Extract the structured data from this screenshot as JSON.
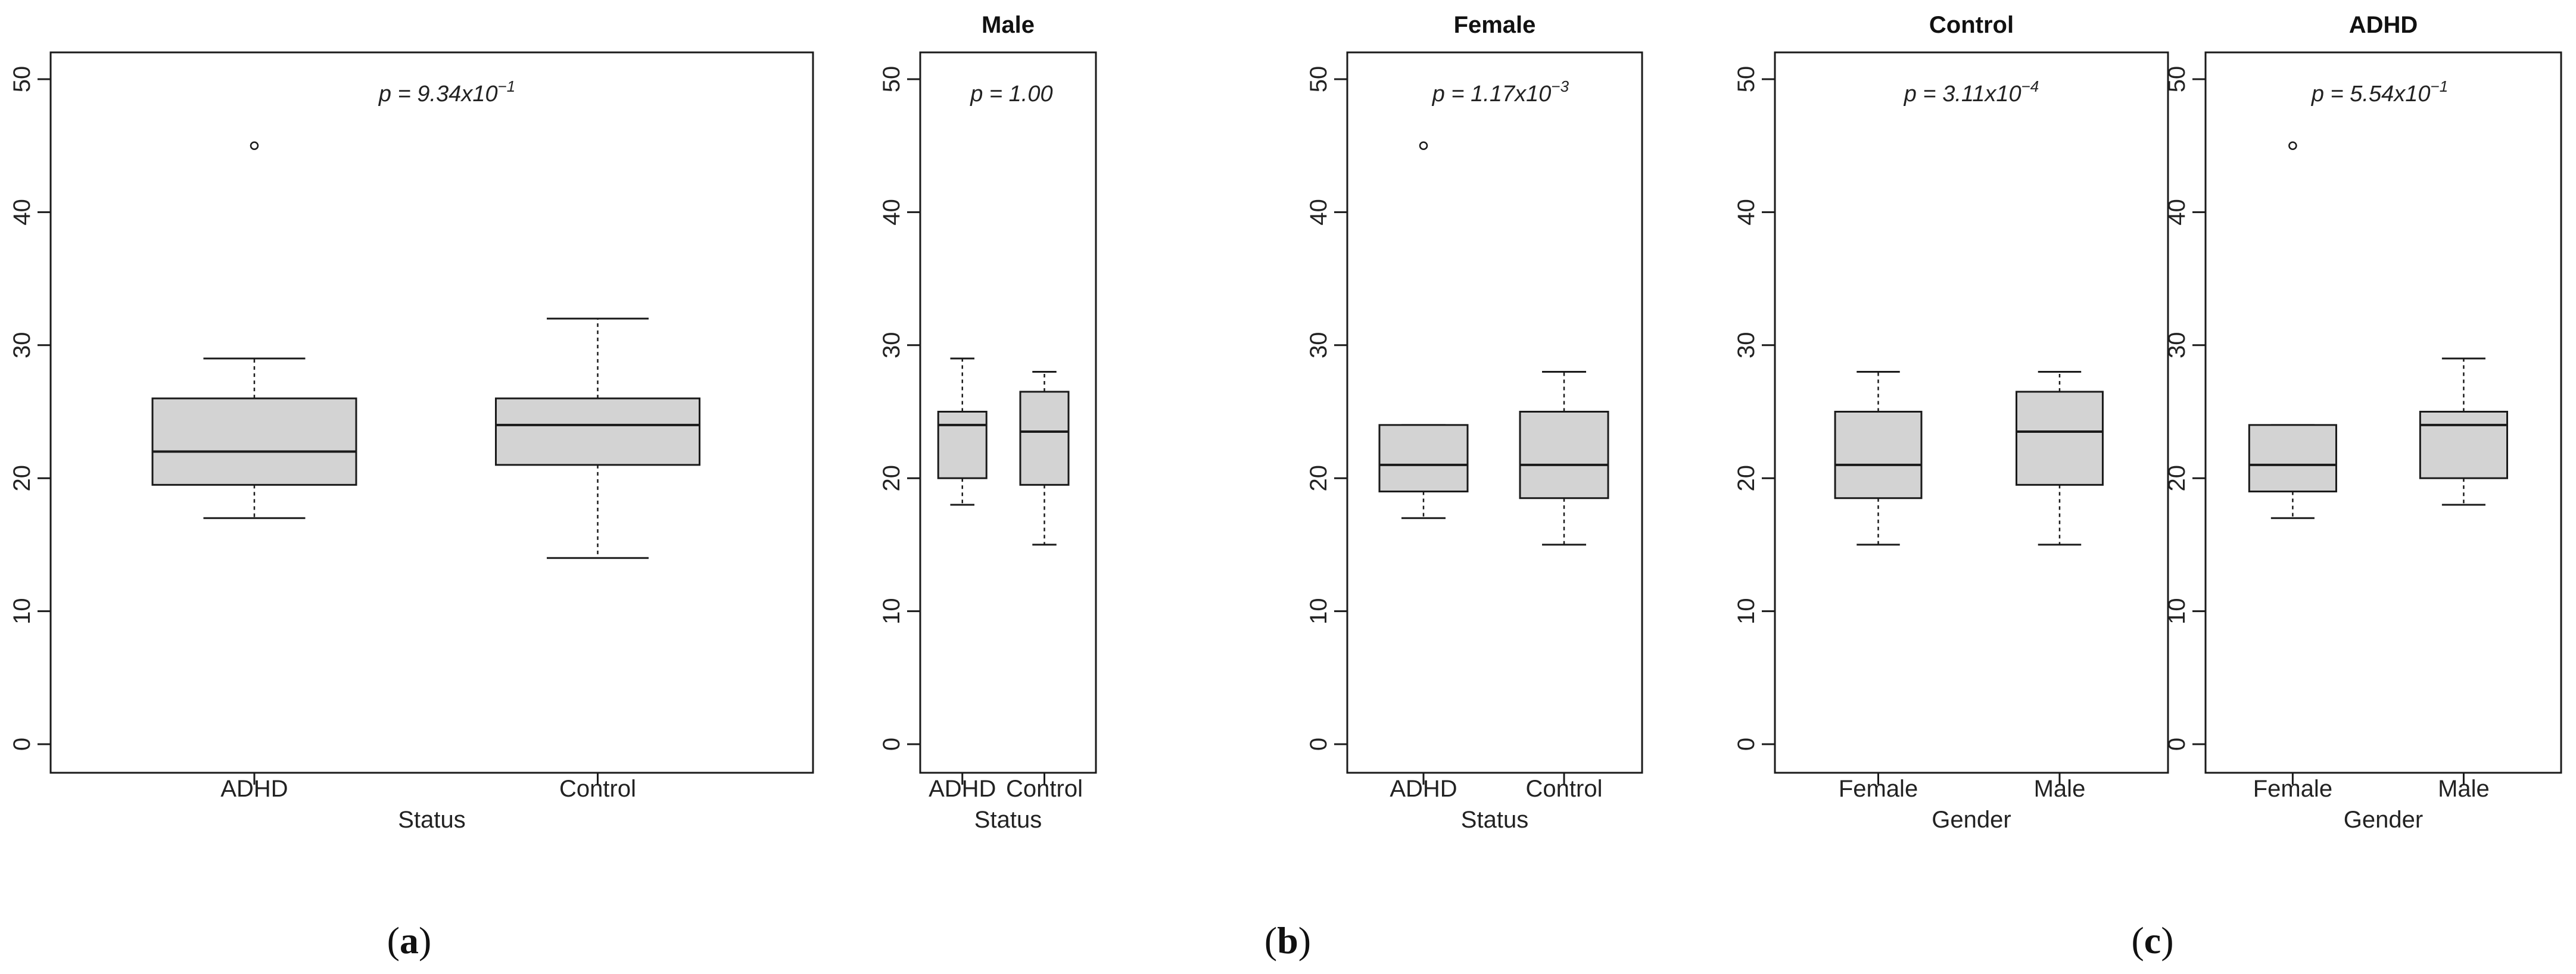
{
  "panel_labels": [
    {
      "open": "(",
      "letter": "a",
      "close": ")"
    },
    {
      "open": "(",
      "letter": "b",
      "close": ")"
    },
    {
      "open": "(",
      "letter": "c",
      "close": ")"
    }
  ],
  "colors": {
    "box_fill": "#d3d3d3",
    "stroke": "#1a1a1a"
  },
  "chart_data": [
    {
      "type": "boxplot",
      "title": "",
      "p_value": {
        "prefix": "p = ",
        "mantissa": "9.34x10",
        "exponent": "−1"
      },
      "categories": [
        "ADHD",
        "Control"
      ],
      "xlabel": "Status",
      "ylabel": "",
      "ylim": [
        0,
        50
      ],
      "yticks": [
        "0",
        "10",
        "20",
        "30",
        "40",
        "50"
      ],
      "boxes": [
        {
          "name": "ADHD",
          "whisker_low": 17,
          "q1": 19.5,
          "median": 22,
          "q3": 26,
          "whisker_high": 29,
          "outliers": [
            45
          ]
        },
        {
          "name": "Control",
          "whisker_low": 14,
          "q1": 21,
          "median": 24,
          "q3": 26,
          "whisker_high": 32,
          "outliers": []
        }
      ]
    },
    {
      "type": "boxplot",
      "title": "Male",
      "p_value": {
        "prefix": "p = ",
        "mantissa": "1.00",
        "exponent": ""
      },
      "categories": [
        "ADHD",
        "Control"
      ],
      "xlabel": "Status",
      "ylabel": "",
      "ylim": [
        0,
        50
      ],
      "yticks": [
        "0",
        "10",
        "20",
        "30",
        "40",
        "50"
      ],
      "boxes": [
        {
          "name": "ADHD",
          "whisker_low": 18,
          "q1": 20,
          "median": 24,
          "q3": 25,
          "whisker_high": 29,
          "outliers": []
        },
        {
          "name": "Control",
          "whisker_low": 15,
          "q1": 19.5,
          "median": 23.5,
          "q3": 26.5,
          "whisker_high": 28,
          "outliers": []
        }
      ]
    },
    {
      "type": "boxplot",
      "title": "Female",
      "p_value": {
        "prefix": "p = ",
        "mantissa": "1.17x10",
        "exponent": "−3"
      },
      "categories": [
        "ADHD",
        "Control"
      ],
      "xlabel": "Status",
      "ylabel": "",
      "ylim": [
        0,
        50
      ],
      "yticks": [
        "0",
        "10",
        "20",
        "30",
        "40",
        "50"
      ],
      "boxes": [
        {
          "name": "ADHD",
          "whisker_low": 17,
          "q1": 19,
          "median": 21,
          "q3": 24,
          "whisker_high": 24,
          "outliers": [
            45
          ]
        },
        {
          "name": "Control",
          "whisker_low": 15,
          "q1": 18.5,
          "median": 21,
          "q3": 25,
          "whisker_high": 28,
          "outliers": []
        }
      ]
    },
    {
      "type": "boxplot",
      "title": "Control",
      "p_value": {
        "prefix": "p = ",
        "mantissa": "3.11x10",
        "exponent": "−4"
      },
      "categories": [
        "Female",
        "Male"
      ],
      "xlabel": "Gender",
      "ylabel": "",
      "ylim": [
        0,
        50
      ],
      "yticks": [
        "0",
        "10",
        "20",
        "30",
        "40",
        "50"
      ],
      "boxes": [
        {
          "name": "Female",
          "whisker_low": 15,
          "q1": 18.5,
          "median": 21,
          "q3": 25,
          "whisker_high": 28,
          "outliers": []
        },
        {
          "name": "Male",
          "whisker_low": 15,
          "q1": 19.5,
          "median": 23.5,
          "q3": 26.5,
          "whisker_high": 28,
          "outliers": []
        }
      ]
    },
    {
      "type": "boxplot",
      "title": "ADHD",
      "p_value": {
        "prefix": "p = ",
        "mantissa": "5.54x10",
        "exponent": "−1"
      },
      "categories": [
        "Female",
        "Male"
      ],
      "xlabel": "Gender",
      "ylabel": "",
      "ylim": [
        0,
        50
      ],
      "yticks": [
        "0",
        "10",
        "20",
        "30",
        "40",
        "50"
      ],
      "boxes": [
        {
          "name": "Female",
          "whisker_low": 17,
          "q1": 19,
          "median": 21,
          "q3": 24,
          "whisker_high": 24,
          "outliers": [
            45
          ]
        },
        {
          "name": "Male",
          "whisker_low": 18,
          "q1": 20,
          "median": 24,
          "q3": 25,
          "whisker_high": 29,
          "outliers": []
        }
      ]
    }
  ]
}
